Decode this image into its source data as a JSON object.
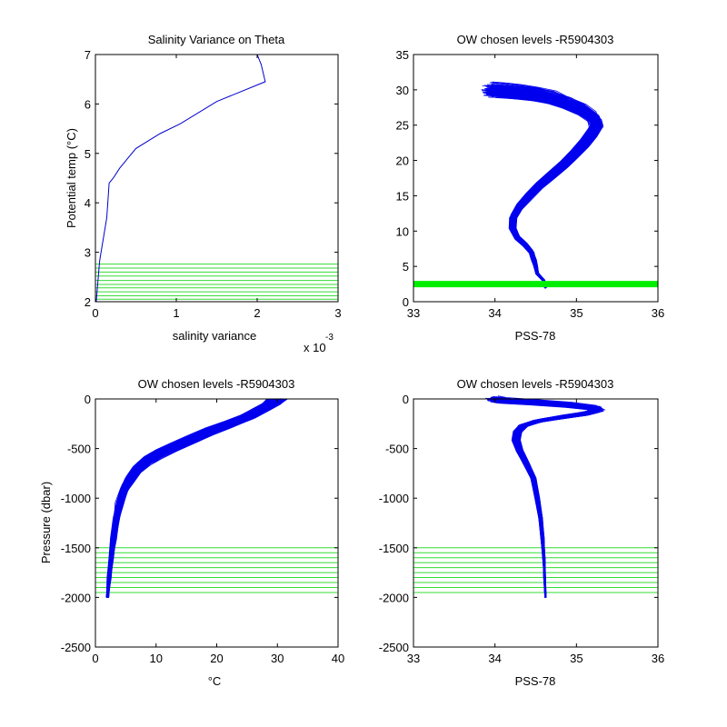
{
  "chart_data": [
    {
      "id": "p1",
      "type": "line",
      "title": "Salinity Variance on Theta",
      "xlabel": "salinity variance",
      "ylabel": "Potential temp (°C)",
      "x_multiplier_label": "x 10",
      "x_multiplier_exponent": "-3",
      "xlim": [
        0,
        3
      ],
      "ylim": [
        2,
        7
      ],
      "xticks": [
        "0",
        "1",
        "2",
        "3"
      ],
      "yticks": [
        "2",
        "3",
        "4",
        "5",
        "6",
        "7"
      ],
      "line_color": "#0000cc",
      "hline_color": "#33dd33",
      "series": [
        {
          "x": [
            0.01,
            0.02,
            0.03,
            0.04,
            0.05,
            0.06,
            0.08,
            0.1,
            0.12,
            0.14,
            0.17,
            0.22,
            0.3,
            0.4,
            0.5,
            0.8,
            1.05,
            1.5,
            2.1,
            2.05,
            2.0
          ],
          "y": [
            2.0,
            2.2,
            2.4,
            2.6,
            2.8,
            2.9,
            3.1,
            3.3,
            3.5,
            3.7,
            4.4,
            4.5,
            4.7,
            4.9,
            5.1,
            5.4,
            5.6,
            6.05,
            6.45,
            6.8,
            7.0
          ]
        }
      ],
      "hlines": [
        2.05,
        2.12,
        2.2,
        2.28,
        2.35,
        2.43,
        2.52,
        2.6,
        2.68,
        2.76
      ]
    },
    {
      "id": "p2",
      "type": "line",
      "title": "OW chosen levels -R5904303",
      "xlabel": "PSS-78",
      "ylabel": "",
      "xlim": [
        33,
        36
      ],
      "ylim": [
        0,
        35
      ],
      "xticks": [
        "33",
        "34",
        "35",
        "36"
      ],
      "yticks": [
        "0",
        "5",
        "10",
        "15",
        "20",
        "25",
        "30",
        "35"
      ],
      "line_color": "#0000ee",
      "hline_color": "#00ee00",
      "profile": {
        "x": [
          34.62,
          34.6,
          34.52,
          34.5,
          34.48,
          34.45,
          34.38,
          34.28,
          34.22,
          34.23,
          34.3,
          34.42,
          34.55,
          34.7,
          34.85,
          34.98,
          35.1,
          35.2,
          35.25,
          35.22,
          35.1,
          34.9,
          34.7,
          34.5,
          34.3,
          34.1,
          33.95
        ],
        "y": [
          2.0,
          3.0,
          4.0,
          5.0,
          6.0,
          7.0,
          8.0,
          9.0,
          10.5,
          12.0,
          13.5,
          15.0,
          16.5,
          18.0,
          19.5,
          21.0,
          22.5,
          24.0,
          25.0,
          26.0,
          27.0,
          28.0,
          28.8,
          29.3,
          29.6,
          29.8,
          29.9
        ]
      },
      "profile_count": 180,
      "hlines": [
        2.5
      ]
    },
    {
      "id": "p3",
      "type": "line",
      "title": "OW chosen levels -R5904303",
      "xlabel": "°C",
      "ylabel": "Pressure (dbar)",
      "xlim": [
        0,
        40
      ],
      "ylim": [
        -2500,
        0
      ],
      "xticks": [
        "0",
        "10",
        "20",
        "30",
        "40"
      ],
      "yticks": [
        "-2500",
        "-2000",
        "-1500",
        "-1000",
        "-500",
        "0"
      ],
      "line_color": "#0000ee",
      "hline_color": "#33dd33",
      "profile": {
        "x": [
          2.0,
          2.3,
          2.6,
          3.0,
          3.5,
          4.0,
          4.8,
          5.8,
          7.0,
          8.5,
          10.5,
          13.0,
          16.0,
          19.0,
          22.0,
          25.0,
          27.5,
          29.0,
          30.0
        ],
        "y": [
          -2000,
          -1800,
          -1600,
          -1400,
          -1200,
          -1050,
          -900,
          -800,
          -700,
          -620,
          -550,
          -480,
          -400,
          -320,
          -250,
          -180,
          -100,
          -50,
          0
        ]
      },
      "profile_count": 180,
      "hlines": [
        -1500,
        -1550,
        -1600,
        -1650,
        -1700,
        -1750,
        -1800,
        -1850,
        -1900,
        -1950
      ]
    },
    {
      "id": "p4",
      "type": "line",
      "title": "OW chosen levels -R5904303",
      "xlabel": "PSS-78",
      "ylabel": "",
      "xlim": [
        33,
        36
      ],
      "ylim": [
        -2500,
        0
      ],
      "xticks": [
        "33",
        "34",
        "35",
        "36"
      ],
      "yticks": [
        "-2500",
        "-2000",
        "-1500",
        "-1000",
        "-500",
        "0"
      ],
      "line_color": "#0000ee",
      "hline_color": "#33dd33",
      "profile": {
        "x": [
          34.62,
          34.61,
          34.6,
          34.58,
          34.56,
          34.52,
          34.47,
          34.38,
          34.3,
          34.26,
          34.28,
          34.35,
          34.55,
          34.85,
          35.1,
          35.25,
          35.2,
          34.9,
          34.5,
          34.1,
          34.0
        ],
        "y": [
          -2000,
          -1800,
          -1600,
          -1400,
          -1200,
          -1000,
          -800,
          -650,
          -520,
          -420,
          -330,
          -270,
          -220,
          -180,
          -150,
          -120,
          -90,
          -60,
          -35,
          -15,
          0
        ]
      },
      "profile_count": 180,
      "hlines": [
        -1500,
        -1550,
        -1600,
        -1650,
        -1700,
        -1750,
        -1800,
        -1850,
        -1900,
        -1950
      ]
    }
  ]
}
